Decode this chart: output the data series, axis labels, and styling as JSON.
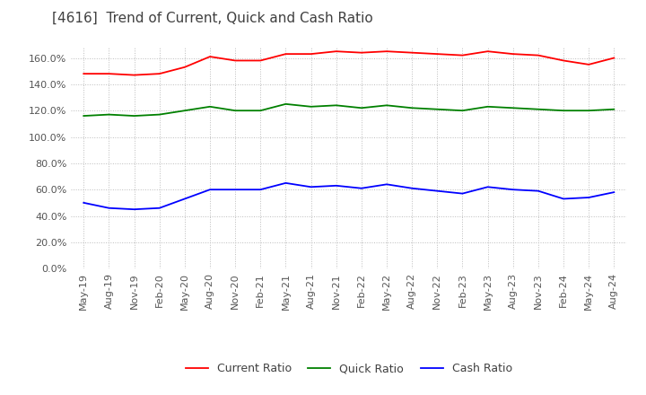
{
  "title": "[4616]  Trend of Current, Quick and Cash Ratio",
  "xlabels": [
    "May-19",
    "Aug-19",
    "Nov-19",
    "Feb-20",
    "May-20",
    "Aug-20",
    "Nov-20",
    "Feb-21",
    "May-21",
    "Aug-21",
    "Nov-21",
    "Feb-22",
    "May-22",
    "Aug-22",
    "Nov-22",
    "Feb-23",
    "May-23",
    "Aug-23",
    "Nov-23",
    "Feb-24",
    "May-24",
    "Aug-24"
  ],
  "current_ratio": [
    148,
    148,
    147,
    148,
    153,
    161,
    158,
    158,
    163,
    163,
    165,
    164,
    165,
    164,
    163,
    162,
    165,
    163,
    162,
    158,
    155,
    160
  ],
  "quick_ratio": [
    116,
    117,
    116,
    117,
    120,
    123,
    120,
    120,
    125,
    123,
    124,
    122,
    124,
    122,
    121,
    120,
    123,
    122,
    121,
    120,
    120,
    121
  ],
  "cash_ratio": [
    50,
    46,
    45,
    46,
    53,
    60,
    60,
    60,
    65,
    62,
    63,
    61,
    64,
    61,
    59,
    57,
    62,
    60,
    59,
    53,
    54,
    58
  ],
  "ylim": [
    0,
    168
  ],
  "yticks": [
    0,
    20,
    40,
    60,
    80,
    100,
    120,
    140,
    160
  ],
  "line_colors": {
    "current": "#FF0000",
    "quick": "#008000",
    "cash": "#0000FF"
  },
  "legend_labels": [
    "Current Ratio",
    "Quick Ratio",
    "Cash Ratio"
  ],
  "background_color": "#FFFFFF",
  "grid_color": "#BBBBBB",
  "title_color": "#404040",
  "title_fontsize": 11,
  "tick_fontsize": 8,
  "legend_fontsize": 9
}
